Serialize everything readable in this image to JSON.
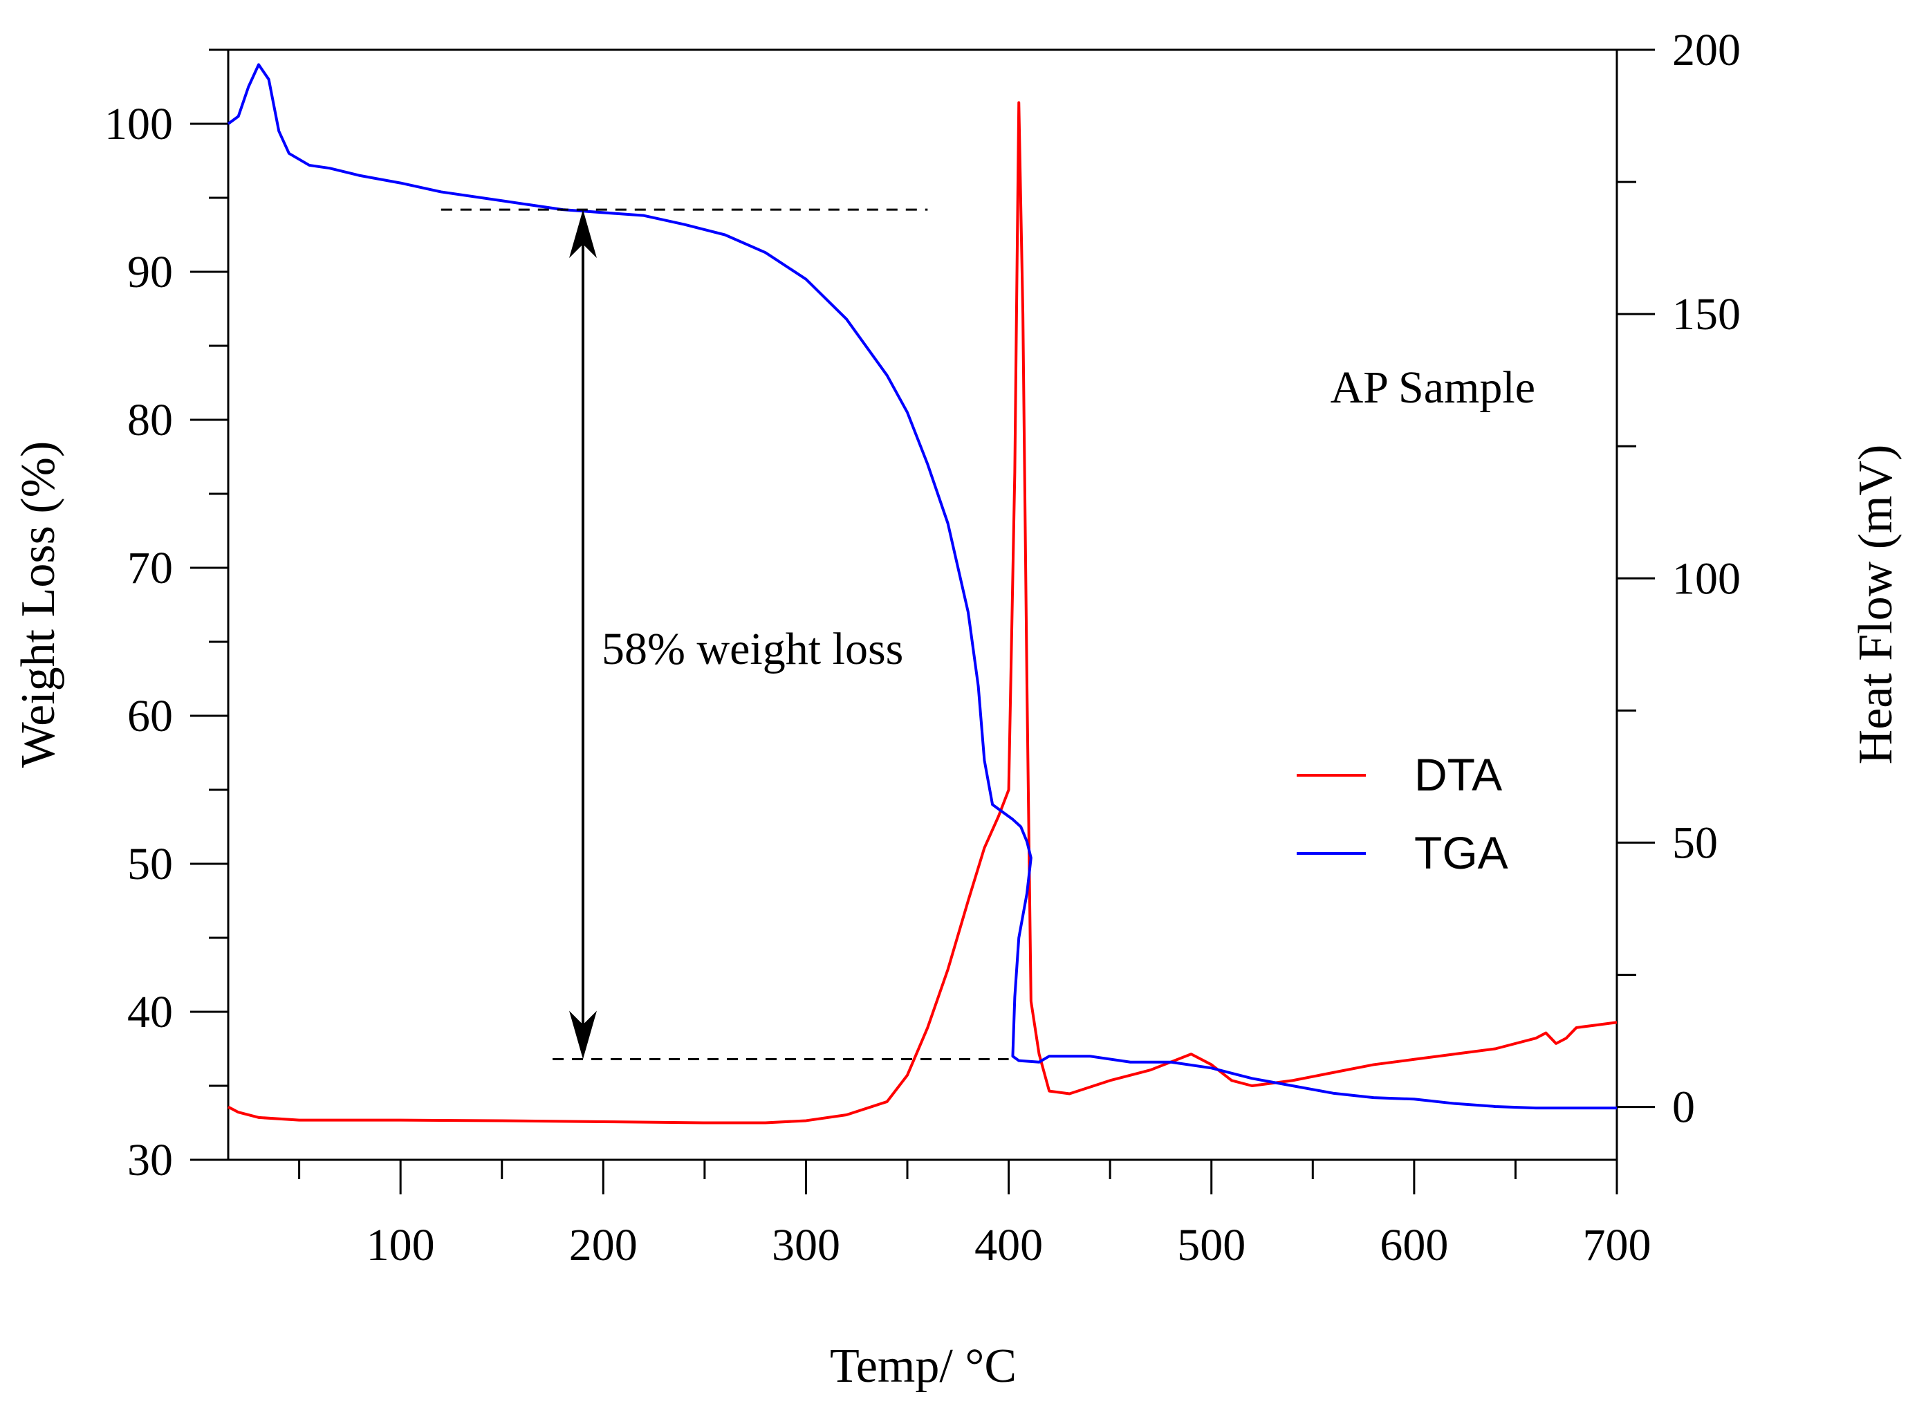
{
  "chart_data": {
    "type": "line",
    "title": "",
    "annotation_sample": "AP Sample",
    "annotation_loss": "58% weight loss",
    "xlabel": "Temp/ °C",
    "ylabel_left": "Weight Loss (%)",
    "ylabel_right": "Heat Flow (mV)",
    "xlim": [
      15,
      700
    ],
    "ylim_left": [
      30,
      105
    ],
    "ylim_right": [
      -10,
      200
    ],
    "x_ticks": [
      100,
      200,
      300,
      400,
      500,
      600,
      700
    ],
    "y_left_ticks": [
      30,
      40,
      50,
      60,
      70,
      80,
      90,
      100
    ],
    "y_right_ticks": [
      0,
      50,
      100,
      150,
      200
    ],
    "legend_position": "center-right",
    "loss_marker": {
      "x": 190,
      "upper": 94.2,
      "lower": 36.8,
      "upper_line_x": [
        120,
        360
      ],
      "lower_line_x": [
        175,
        400
      ]
    },
    "series": [
      {
        "name": "DTA",
        "axis": "right",
        "color": "#ff0000",
        "points": [
          [
            15,
            0
          ],
          [
            20,
            -1
          ],
          [
            30,
            -2
          ],
          [
            50,
            -2.5
          ],
          [
            100,
            -2.5
          ],
          [
            150,
            -2.6
          ],
          [
            200,
            -2.8
          ],
          [
            250,
            -3
          ],
          [
            280,
            -3
          ],
          [
            300,
            -2.6
          ],
          [
            320,
            -1.5
          ],
          [
            340,
            1
          ],
          [
            350,
            6
          ],
          [
            360,
            15
          ],
          [
            370,
            26
          ],
          [
            380,
            39
          ],
          [
            388,
            49
          ],
          [
            395,
            55
          ],
          [
            400,
            60
          ],
          [
            403,
            120
          ],
          [
            405,
            190
          ],
          [
            407,
            150
          ],
          [
            409,
            80
          ],
          [
            411,
            20
          ],
          [
            415,
            10
          ],
          [
            420,
            3
          ],
          [
            430,
            2.5
          ],
          [
            450,
            5
          ],
          [
            470,
            7
          ],
          [
            490,
            10
          ],
          [
            500,
            8
          ],
          [
            510,
            5
          ],
          [
            520,
            4
          ],
          [
            540,
            5
          ],
          [
            560,
            6.5
          ],
          [
            580,
            8
          ],
          [
            600,
            9
          ],
          [
            620,
            10
          ],
          [
            640,
            11
          ],
          [
            660,
            13
          ],
          [
            665,
            14
          ],
          [
            670,
            12
          ],
          [
            675,
            13
          ],
          [
            680,
            15
          ],
          [
            690,
            15.5
          ],
          [
            700,
            16
          ]
        ]
      },
      {
        "name": "TGA",
        "axis": "left",
        "color": "#0000ff",
        "points": [
          [
            15,
            100
          ],
          [
            20,
            100.5
          ],
          [
            25,
            102.5
          ],
          [
            30,
            104
          ],
          [
            35,
            103
          ],
          [
            40,
            99.5
          ],
          [
            45,
            98
          ],
          [
            55,
            97.2
          ],
          [
            65,
            97
          ],
          [
            80,
            96.5
          ],
          [
            100,
            96
          ],
          [
            120,
            95.4
          ],
          [
            150,
            94.8
          ],
          [
            180,
            94.2
          ],
          [
            220,
            93.8
          ],
          [
            240,
            93.2
          ],
          [
            260,
            92.5
          ],
          [
            280,
            91.3
          ],
          [
            300,
            89.5
          ],
          [
            320,
            86.8
          ],
          [
            340,
            83
          ],
          [
            350,
            80.5
          ],
          [
            360,
            77
          ],
          [
            370,
            73
          ],
          [
            380,
            67
          ],
          [
            385,
            62
          ],
          [
            388,
            57
          ],
          [
            392,
            54
          ],
          [
            397,
            53.5
          ],
          [
            402,
            53
          ],
          [
            406,
            52.5
          ],
          [
            409,
            51.5
          ],
          [
            411,
            50.4
          ],
          [
            409,
            48
          ],
          [
            405,
            45
          ],
          [
            403,
            41
          ],
          [
            402,
            37
          ],
          [
            405,
            36.7
          ],
          [
            415,
            36.6
          ],
          [
            420,
            37
          ],
          [
            440,
            37
          ],
          [
            460,
            36.6
          ],
          [
            480,
            36.6
          ],
          [
            500,
            36.2
          ],
          [
            520,
            35.5
          ],
          [
            540,
            35
          ],
          [
            560,
            34.5
          ],
          [
            580,
            34.2
          ],
          [
            600,
            34.1
          ],
          [
            620,
            33.8
          ],
          [
            640,
            33.6
          ],
          [
            660,
            33.5
          ],
          [
            700,
            33.5
          ]
        ]
      }
    ]
  }
}
